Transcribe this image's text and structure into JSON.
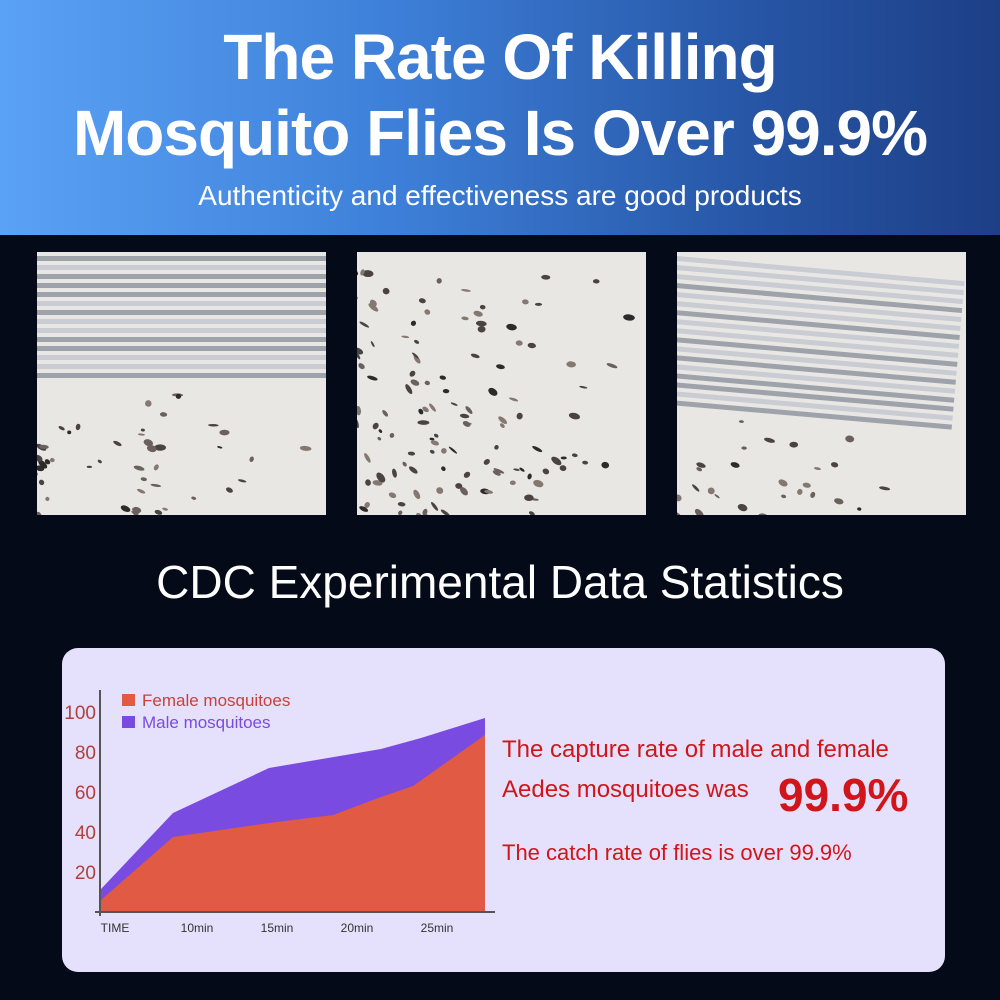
{
  "header": {
    "title_line1": "The Rate Of Killing",
    "title_line2": "Mosquito Flies Is Over 99.9%",
    "subtitle": "Authenticity and effectiveness are good products",
    "gradient_colors": [
      "#5aa2f5",
      "#1d3f86"
    ]
  },
  "section_title": "CDC Experimental Data Statistics",
  "stats": {
    "line1": "The capture rate of male and female",
    "line2": "Aedes mosquitoes was",
    "highlight": "99.9%",
    "line3": "The catch rate of flies is over 99.9%",
    "color": "#d0161a"
  },
  "chart_data": {
    "type": "area",
    "stacked": true,
    "x_tick_labels": [
      "TIME",
      "10min",
      "15min",
      "20min",
      "25min"
    ],
    "y_tick_labels": [
      "20",
      "40",
      "60",
      "80",
      "100"
    ],
    "ylim": [
      0,
      100
    ],
    "grid": false,
    "legend_position": "top-left",
    "series": [
      {
        "name": "Female mosquitoes",
        "color": "#e05a44",
        "points": [
          [
            4,
            6
          ],
          [
            8.5,
            37.5
          ],
          [
            14.5,
            44.5
          ],
          [
            18.5,
            48.5
          ],
          [
            21.5,
            57.5
          ],
          [
            23.5,
            63
          ],
          [
            28,
            88.5
          ]
        ]
      },
      {
        "name": "Male mosquitoes",
        "color": "#7a4be0",
        "points_top": [
          [
            4,
            11.5
          ],
          [
            8.5,
            49.5
          ],
          [
            14.5,
            72
          ],
          [
            21.5,
            81.5
          ],
          [
            24,
            87
          ],
          [
            28,
            97
          ]
        ]
      }
    ]
  }
}
